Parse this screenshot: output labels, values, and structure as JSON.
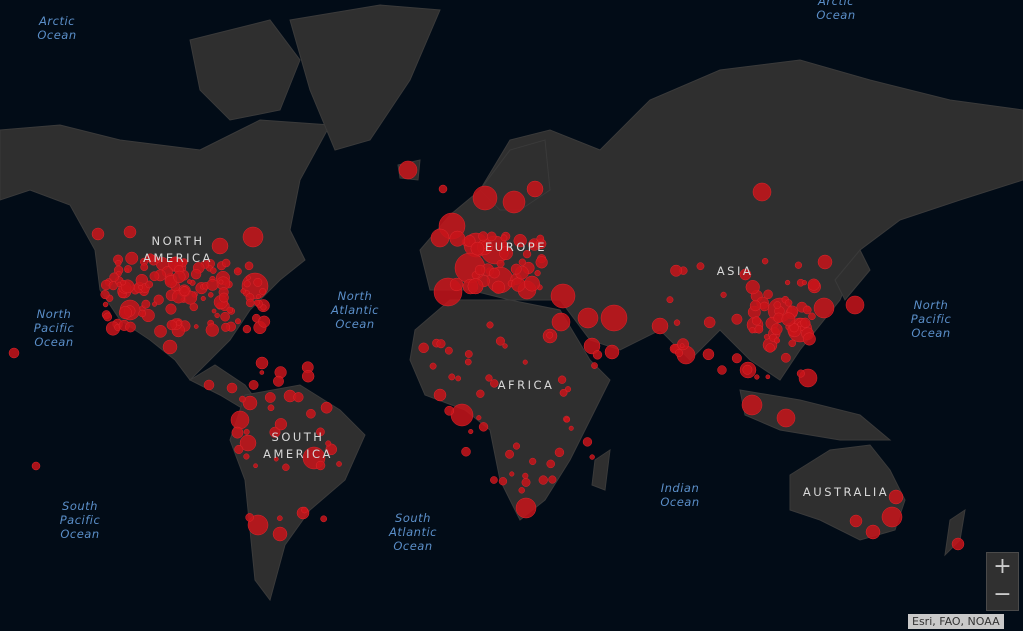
{
  "colors": {
    "ocean": "#020c17",
    "land": "#2f2f2f",
    "marker": "#c8141a",
    "border": "#8a8a8a"
  },
  "oceans": [
    {
      "id": "arctic-w",
      "name": "Arctic\nOcean"
    },
    {
      "id": "arctic-e",
      "name": "Arctic\nOcean"
    },
    {
      "id": "npac-w",
      "name": "North\nPacific\nOcean"
    },
    {
      "id": "npac-e",
      "name": "North\nPacific\nOcean"
    },
    {
      "id": "natl",
      "name": "North\nAtlantic\nOcean"
    },
    {
      "id": "spac",
      "name": "South\nPacific\nOcean"
    },
    {
      "id": "satl",
      "name": "South\nAtlantic\nOcean"
    },
    {
      "id": "indian",
      "name": "Indian\nOcean"
    }
  ],
  "continents": [
    {
      "id": "na",
      "name": "NORTH\nAMERICA"
    },
    {
      "id": "eu",
      "name": "EUROPE"
    },
    {
      "id": "asia",
      "name": "ASIA"
    },
    {
      "id": "af",
      "name": "AFRICA"
    },
    {
      "id": "sa",
      "name": "SOUTH\nAMERICA"
    },
    {
      "id": "au",
      "name": "AUSTRALIA"
    }
  ],
  "controls": {
    "zoom_in": "+",
    "zoom_out": "−"
  },
  "attribution": "Esri, FAO, NOAA"
}
